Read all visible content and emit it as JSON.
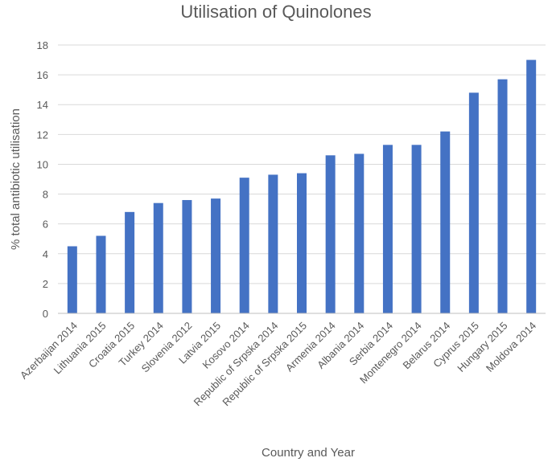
{
  "chart_data": {
    "type": "bar",
    "title": "Utilisation of Quinolones",
    "xlabel": "Country and Year",
    "ylabel": "% total antibiotic utilisation",
    "ylim": [
      0,
      18
    ],
    "yticks": [
      0,
      2,
      4,
      6,
      8,
      10,
      12,
      14,
      16,
      18
    ],
    "grid": true,
    "legend": "none",
    "bar_color": "#4472c4",
    "categories": [
      "Azerbaijan 2014",
      "Lithuania 2015",
      "Croatia 2015",
      "Turkey 2014",
      "Slovenia 2012",
      "Latvia 2015",
      "Kosovo 2014",
      "Republic of Srpska 2014",
      "Republic of Srpska 2015",
      "Armenia 2014",
      "Albania 2014",
      "Serbia 2014",
      "Montenegro 2014",
      "Belarus 2014",
      "Cyprus 2015",
      "Hungary 2015",
      "Moldova 2014"
    ],
    "values": [
      4.5,
      5.2,
      6.8,
      7.4,
      7.6,
      7.7,
      9.1,
      9.3,
      9.4,
      10.6,
      10.7,
      11.3,
      11.3,
      12.2,
      14.8,
      15.7,
      17.0
    ]
  }
}
